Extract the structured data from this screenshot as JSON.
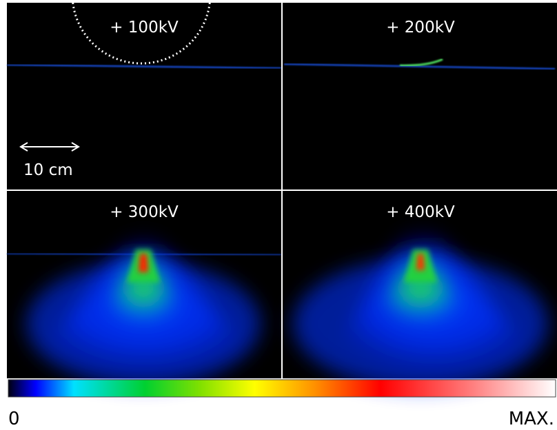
{
  "panels": [
    {
      "label": "+ 100kV"
    },
    {
      "label": "+ 200kV"
    },
    {
      "label": "+ 300kV"
    },
    {
      "label": "+ 400kV"
    }
  ],
  "scale_bar": {
    "label": "10 cm"
  },
  "colorbar": {
    "min_label": "0",
    "max_label": "MAX."
  }
}
